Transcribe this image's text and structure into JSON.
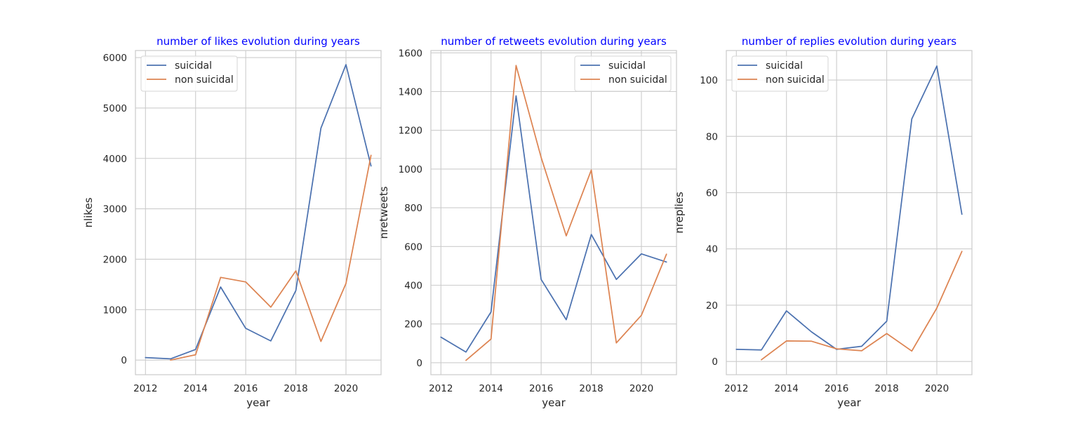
{
  "chart_data": [
    {
      "type": "line",
      "title": "number of likes evolution during years",
      "xlabel": "year",
      "ylabel": "nlikes",
      "xlim": [
        2011.6,
        2021.4
      ],
      "ylim": [
        -290,
        6140
      ],
      "xticks": [
        2012,
        2014,
        2016,
        2018,
        2020
      ],
      "yticks": [
        0,
        1000,
        2000,
        3000,
        4000,
        5000,
        6000
      ],
      "grid": true,
      "legend": "upper-left",
      "series": [
        {
          "name": "suicidal",
          "color": "#4c72b0",
          "x": [
            2012,
            2013,
            2014,
            2015,
            2016,
            2017,
            2018,
            2019,
            2020,
            2021
          ],
          "y": [
            50,
            25,
            210,
            1450,
            630,
            380,
            1380,
            4600,
            5860,
            3850
          ]
        },
        {
          "name": "non suicidal",
          "color": "#dd8452",
          "x": [
            2013,
            2014,
            2015,
            2016,
            2017,
            2018,
            2019,
            2020,
            2021
          ],
          "y": [
            0,
            105,
            1640,
            1550,
            1050,
            1770,
            370,
            1520,
            4060
          ]
        }
      ]
    },
    {
      "type": "line",
      "title": "number of retweets evolution during years",
      "xlabel": "year",
      "ylabel": "nretweets",
      "xlim": [
        2011.6,
        2021.4
      ],
      "ylim": [
        -62,
        1612
      ],
      "xticks": [
        2012,
        2014,
        2016,
        2018,
        2020
      ],
      "yticks": [
        0,
        200,
        400,
        600,
        800,
        1000,
        1200,
        1400,
        1600
      ],
      "grid": true,
      "legend": "upper-right",
      "series": [
        {
          "name": "suicidal",
          "color": "#4c72b0",
          "x": [
            2012,
            2013,
            2014,
            2015,
            2016,
            2017,
            2018,
            2019,
            2020,
            2021
          ],
          "y": [
            132,
            55,
            262,
            1378,
            430,
            222,
            662,
            430,
            562,
            520
          ]
        },
        {
          "name": "non suicidal",
          "color": "#dd8452",
          "x": [
            2013,
            2014,
            2015,
            2016,
            2017,
            2018,
            2019,
            2020,
            2021
          ],
          "y": [
            12,
            122,
            1535,
            1060,
            655,
            995,
            102,
            245,
            560
          ]
        }
      ]
    },
    {
      "type": "line",
      "title": "number of replies evolution during years",
      "xlabel": "year",
      "ylabel": "nreplies",
      "xlim": [
        2011.6,
        2021.4
      ],
      "ylim": [
        -4.7,
        110.5
      ],
      "xticks": [
        2012,
        2014,
        2016,
        2018,
        2020
      ],
      "yticks": [
        0,
        20,
        40,
        60,
        80,
        100
      ],
      "grid": true,
      "legend": "upper-left",
      "series": [
        {
          "name": "suicidal",
          "color": "#4c72b0",
          "x": [
            2012,
            2013,
            2014,
            2015,
            2016,
            2017,
            2018,
            2019,
            2020,
            2021
          ],
          "y": [
            4.3,
            4.1,
            18,
            10.5,
            4.3,
            5.4,
            14.3,
            86.2,
            105,
            52.3
          ]
        },
        {
          "name": "non suicidal",
          "color": "#dd8452",
          "x": [
            2013,
            2014,
            2015,
            2016,
            2017,
            2018,
            2019,
            2020,
            2021
          ],
          "y": [
            0.6,
            7.3,
            7.2,
            4.5,
            3.8,
            9.9,
            3.7,
            19,
            39.1
          ]
        }
      ]
    }
  ]
}
